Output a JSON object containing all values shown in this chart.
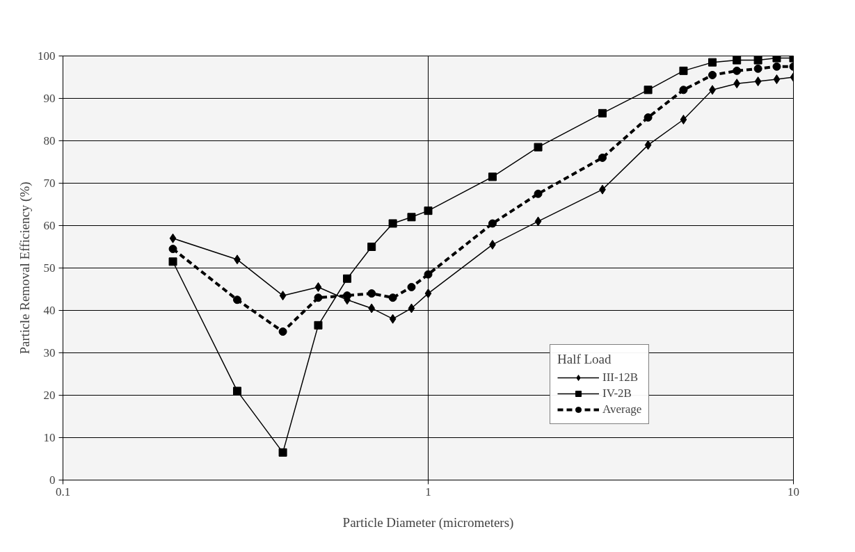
{
  "chart_data": {
    "type": "line",
    "xlabel": "Particle Diameter (micrometers)",
    "ylabel": "Particle Removal Efficiency (%)",
    "legend_title": "Half Load",
    "log": "x",
    "x": [
      0.2,
      0.3,
      0.4,
      0.5,
      0.6,
      0.7,
      0.8,
      0.9,
      1,
      1.5,
      2,
      3,
      4,
      5,
      6,
      7,
      8,
      9,
      10
    ],
    "series": [
      {
        "name": "III-12B",
        "color": "#000000",
        "marker": "diamond",
        "line_style": "solid",
        "values": [
          57,
          52,
          43.5,
          45.5,
          42.5,
          40.5,
          38,
          40.5,
          44,
          55.5,
          61,
          68.5,
          79,
          85,
          92,
          93.5,
          94,
          94.5,
          95
        ]
      },
      {
        "name": "IV-2B",
        "color": "#000000",
        "marker": "square",
        "line_style": "solid",
        "values": [
          51.5,
          21,
          6.5,
          36.5,
          47.5,
          55,
          60.5,
          62,
          63.5,
          71.5,
          78.5,
          86.5,
          92,
          96.5,
          98.5,
          99,
          99,
          99.5,
          99.5
        ]
      },
      {
        "name": "Average",
        "color": "#000000",
        "marker": "circle",
        "line_style": "dashed",
        "values": [
          54.5,
          42.5,
          35,
          43,
          43.5,
          44,
          43,
          45.5,
          48.5,
          60.5,
          67.5,
          76,
          85.5,
          92,
          95.5,
          96.5,
          97,
          97.5,
          97.5
        ]
      }
    ],
    "xlim": [
      0.1,
      10
    ],
    "xticks": [
      0.1,
      1,
      10
    ],
    "ylim": [
      0,
      100
    ],
    "yticks": [
      0,
      10,
      20,
      30,
      40,
      50,
      60,
      70,
      80,
      90,
      100
    ],
    "grid": true,
    "legend": "right"
  }
}
